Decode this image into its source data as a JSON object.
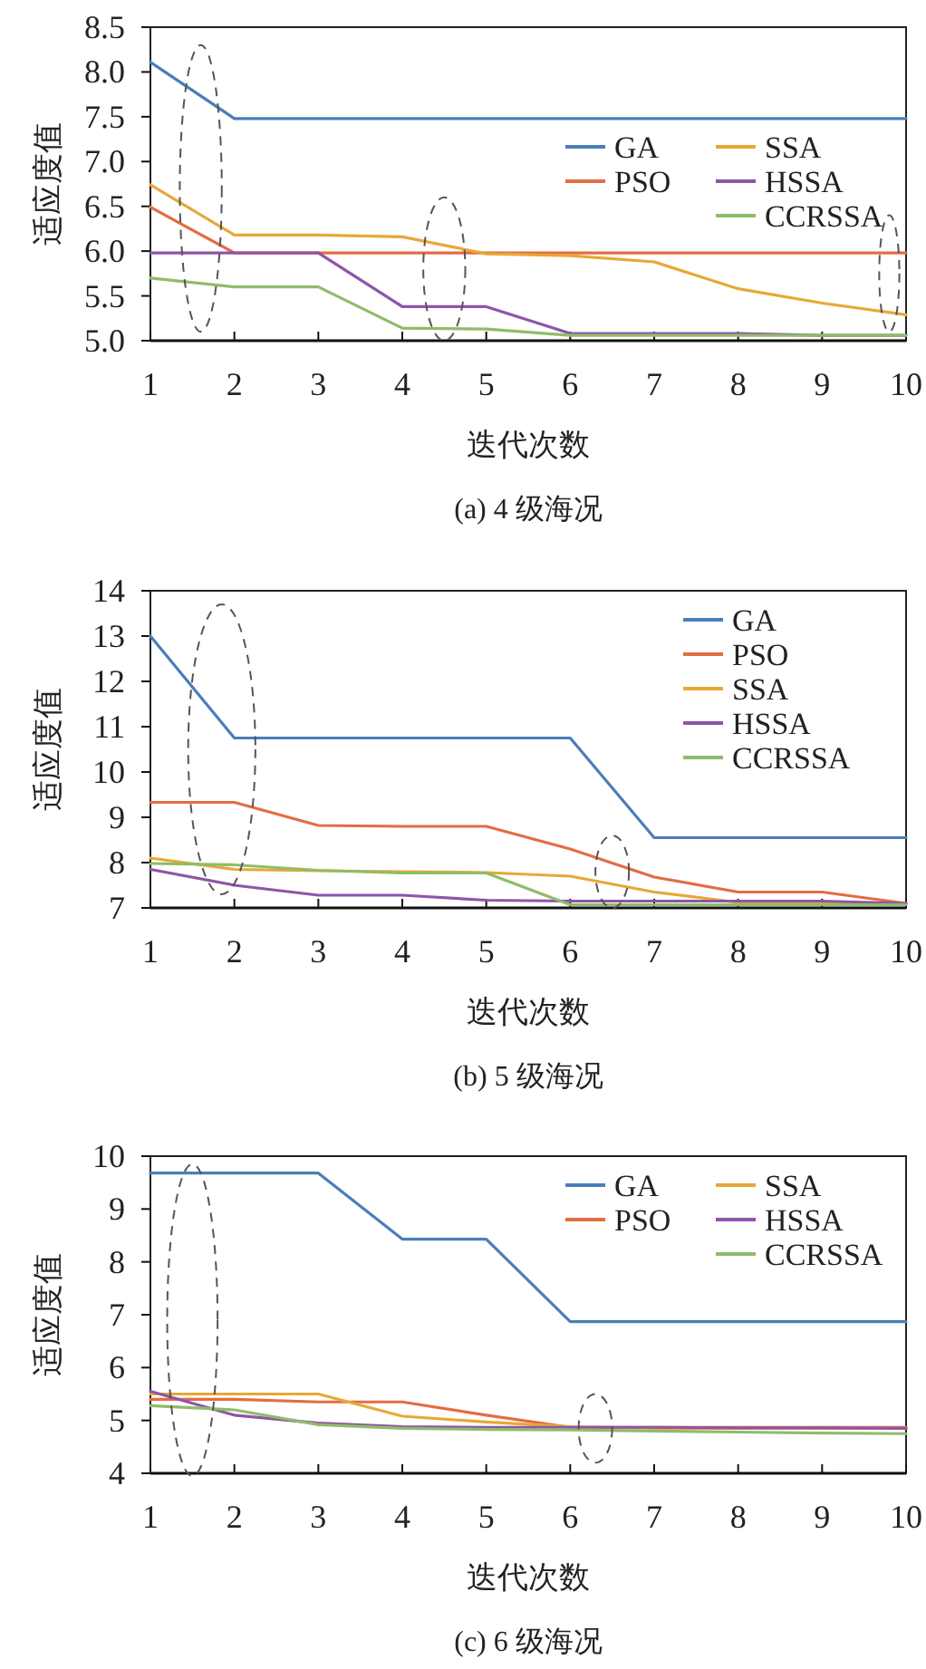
{
  "chart_data": [
    {
      "type": "line",
      "title": "(a) 4 级海况",
      "xlabel": "迭代次数",
      "ylabel": "适应度值",
      "x": [
        1,
        2,
        3,
        4,
        5,
        6,
        7,
        8,
        9,
        10
      ],
      "xlim": [
        1,
        10
      ],
      "xticks": [
        1,
        2,
        3,
        4,
        5,
        6,
        7,
        8,
        9,
        10
      ],
      "ylim": [
        5,
        8.5
      ],
      "yticks": [
        {
          "value": 5,
          "label": "5.0"
        },
        {
          "value": 5.5,
          "label": "5.5"
        },
        {
          "value": 6,
          "label": "6.0"
        },
        {
          "value": 6.5,
          "label": "6.5"
        },
        {
          "value": 7,
          "label": "7.0"
        },
        {
          "value": 7.5,
          "label": "7.5"
        },
        {
          "value": 8,
          "label": "8.0"
        },
        {
          "value": 8.5,
          "label": "8.5"
        }
      ],
      "grid": false,
      "legend": "right",
      "line_style": "solid",
      "series": [
        {
          "name": "GA",
          "color": "#4a7ebb",
          "values": [
            8.11,
            7.48,
            7.48,
            7.48,
            7.48,
            7.48,
            7.48,
            7.48,
            7.48,
            7.48
          ]
        },
        {
          "name": "PSO",
          "color": "#e46c43",
          "values": [
            6.49,
            5.98,
            5.98,
            5.98,
            5.98,
            5.98,
            5.98,
            5.98,
            5.98,
            5.98
          ]
        },
        {
          "name": "SSA",
          "color": "#e8a835",
          "values": [
            6.74,
            6.18,
            6.18,
            6.16,
            5.97,
            5.95,
            5.88,
            5.58,
            5.42,
            5.29
          ]
        },
        {
          "name": "HSSA",
          "color": "#8e55a8",
          "values": [
            5.98,
            5.98,
            5.98,
            5.38,
            5.38,
            5.08,
            5.08,
            5.08,
            5.06,
            5.06
          ]
        },
        {
          "name": "CCRSSA",
          "color": "#8fbc6a",
          "values": [
            5.7,
            5.6,
            5.6,
            5.14,
            5.13,
            5.06,
            5.06,
            5.06,
            5.06,
            5.06
          ]
        }
      ]
    },
    {
      "type": "line",
      "title": "(b) 5 级海况",
      "xlabel": "迭代次数",
      "ylabel": "适应度值",
      "x": [
        1,
        2,
        3,
        4,
        5,
        6,
        7,
        8,
        9,
        10
      ],
      "xlim": [
        1,
        10
      ],
      "xticks": [
        1,
        2,
        3,
        4,
        5,
        6,
        7,
        8,
        9,
        10
      ],
      "ylim": [
        7,
        14
      ],
      "yticks": [
        7,
        8,
        9,
        10,
        11,
        12,
        13,
        14
      ],
      "grid": false,
      "legend": "top right",
      "line_style": "solid",
      "series": [
        {
          "name": "GA",
          "color": "#4a7ebb",
          "values": [
            13.0,
            10.75,
            10.75,
            10.75,
            10.75,
            10.75,
            8.55,
            8.55,
            8.55,
            8.55
          ]
        },
        {
          "name": "PSO",
          "color": "#e46c43",
          "values": [
            9.33,
            9.33,
            8.82,
            8.8,
            8.8,
            8.3,
            7.68,
            7.35,
            7.35,
            7.1
          ]
        },
        {
          "name": "SSA",
          "color": "#e8a835",
          "values": [
            8.1,
            7.85,
            7.82,
            7.8,
            7.78,
            7.7,
            7.35,
            7.12,
            7.1,
            7.1
          ]
        },
        {
          "name": "HSSA",
          "color": "#8e55a8",
          "values": [
            7.85,
            7.5,
            7.28,
            7.28,
            7.17,
            7.15,
            7.15,
            7.15,
            7.15,
            7.1
          ]
        },
        {
          "name": "CCRSSA",
          "color": "#8fbc6a",
          "values": [
            7.98,
            7.95,
            7.83,
            7.77,
            7.77,
            7.07,
            7.07,
            7.07,
            7.07,
            7.07
          ]
        }
      ]
    },
    {
      "type": "line",
      "title": "(c) 6 级海况",
      "xlabel": "迭代次数",
      "ylabel": "适应度值",
      "x": [
        1,
        2,
        3,
        4,
        5,
        6,
        7,
        8,
        9,
        10
      ],
      "xlim": [
        1,
        10
      ],
      "xticks": [
        1,
        2,
        3,
        4,
        5,
        6,
        7,
        8,
        9,
        10
      ],
      "ylim": [
        4,
        10
      ],
      "yticks": [
        4,
        5,
        6,
        7,
        8,
        9,
        10
      ],
      "grid": false,
      "legend": "top right",
      "line_style": "solid",
      "series": [
        {
          "name": "GA",
          "color": "#4a7ebb",
          "values": [
            9.68,
            9.68,
            9.68,
            8.43,
            8.43,
            6.87,
            6.87,
            6.87,
            6.87,
            6.87
          ]
        },
        {
          "name": "PSO",
          "color": "#e46c43",
          "values": [
            5.4,
            5.4,
            5.35,
            5.35,
            5.1,
            4.87,
            4.87,
            4.87,
            4.87,
            4.87
          ]
        },
        {
          "name": "SSA",
          "color": "#e8a835",
          "values": [
            5.5,
            5.5,
            5.5,
            5.08,
            4.97,
            4.88,
            4.85,
            4.85,
            4.85,
            4.85
          ]
        },
        {
          "name": "HSSA",
          "color": "#8e55a8",
          "values": [
            5.55,
            5.1,
            4.95,
            4.88,
            4.87,
            4.87,
            4.87,
            4.86,
            4.86,
            4.85
          ]
        },
        {
          "name": "CCRSSA",
          "color": "#8fbc6a",
          "values": [
            5.28,
            5.2,
            4.92,
            4.85,
            4.83,
            4.82,
            4.8,
            4.78,
            4.76,
            4.75
          ]
        }
      ]
    }
  ]
}
